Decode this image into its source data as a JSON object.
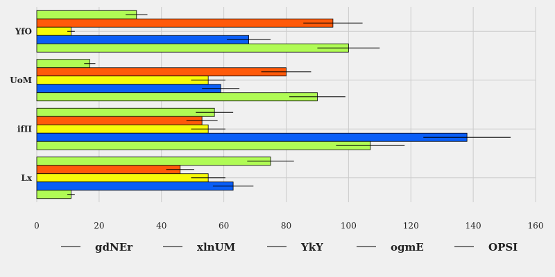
{
  "chart_data": {
    "type": "bar",
    "orientation": "horizontal",
    "categories": [
      "YfO",
      "UoM",
      "ifII",
      "Lx"
    ],
    "series": [
      {
        "name": "gdNEr",
        "color": "#b0fb55",
        "values": [
          32,
          17,
          57,
          75
        ],
        "errors": [
          3.5,
          1.8,
          6,
          7.5
        ]
      },
      {
        "name": "xlnUM",
        "color": "#ff5a0a",
        "values": [
          95,
          80,
          53,
          46
        ],
        "errors": [
          9.5,
          8,
          5,
          4.5
        ]
      },
      {
        "name": "YkY",
        "color": "#f7fb0a",
        "values": [
          11,
          55,
          55,
          55
        ],
        "errors": [
          1.2,
          5.5,
          5.5,
          5.5
        ]
      },
      {
        "name": "ogmE",
        "color": "#0a5ef7",
        "values": [
          68,
          59,
          138,
          63
        ],
        "errors": [
          7,
          6,
          14,
          6.5
        ]
      },
      {
        "name": "OPSI",
        "color": "#b0fb55",
        "values": [
          100,
          90,
          107,
          11
        ],
        "errors": [
          10,
          9,
          11,
          1.2
        ]
      }
    ],
    "xlim": [
      0,
      160
    ],
    "xticks": [
      0,
      20,
      40,
      60,
      80,
      100,
      120,
      140,
      160
    ],
    "grid": true,
    "legend": "bottom"
  }
}
